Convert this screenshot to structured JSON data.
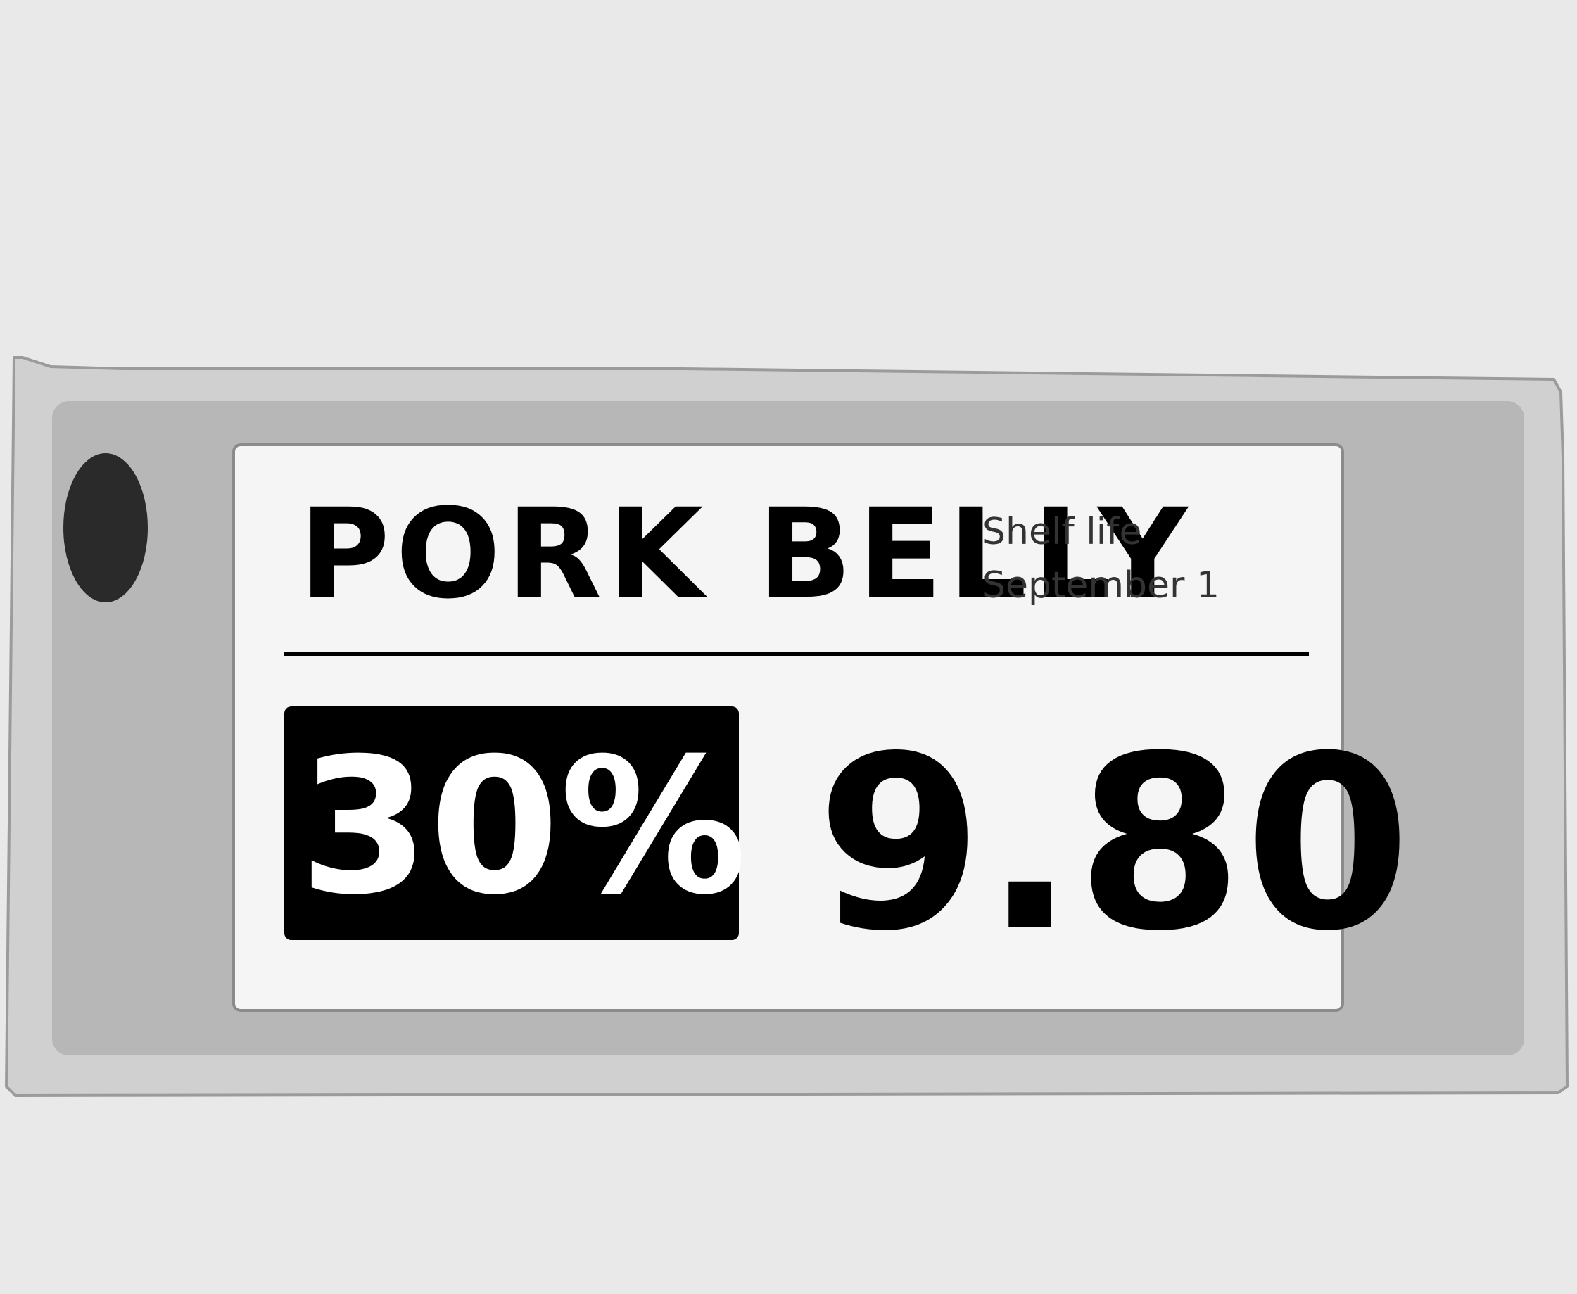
{
  "label": {
    "product_name": "PORK BELLY",
    "shelf_life_label": "Shelf life",
    "shelf_life_date": "September 1",
    "discount": "30%",
    "price": "9.80"
  },
  "colors": {
    "background": "#e9e9e9",
    "device_body": "#d0d0d0",
    "device_inner": "#b7b7b7",
    "screen": "#f5f5f5",
    "mount_hole": "#2a2a2a",
    "text": "#000000",
    "badge_text": "#ffffff"
  }
}
